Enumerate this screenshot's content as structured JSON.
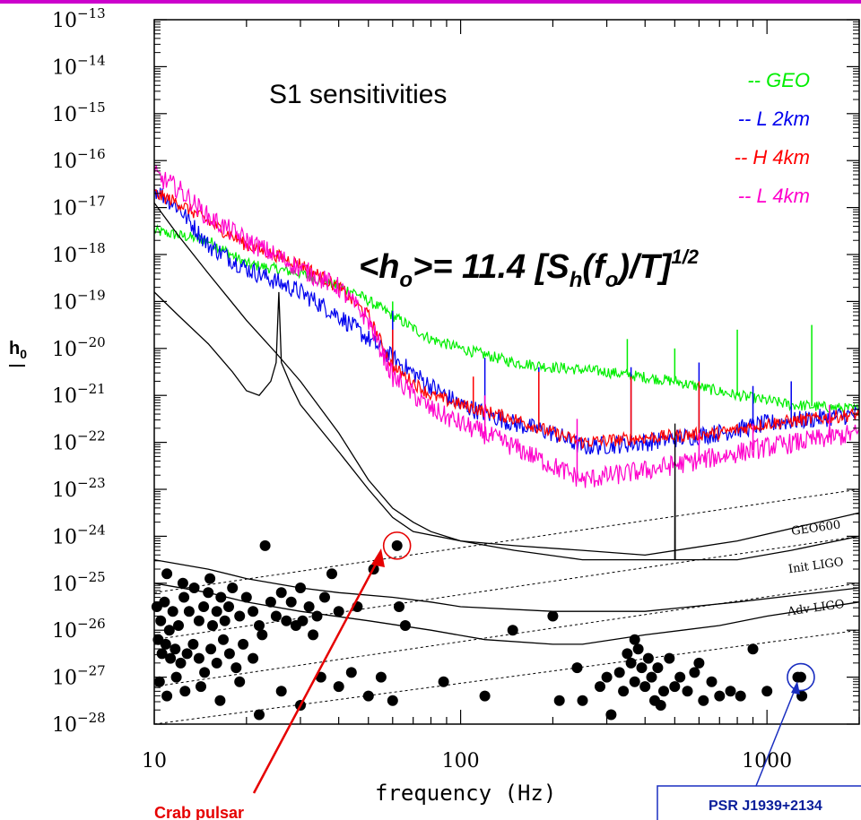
{
  "colors": {
    "top_border": "#cc00cc",
    "geo": "#00ee00",
    "l2km": "#0000ee",
    "h4km": "#ff0000",
    "l4km": "#ff00cc",
    "arrow_red": "#e60000",
    "arrow_blue": "#1a2ec0",
    "circle_red": "#e60000",
    "circle_blue": "#1a2ec0"
  },
  "chart_data": {
    "type": "scatter",
    "title": "S1 sensitivities",
    "formula": {
      "lhs": "<h",
      "lhs_sub": "o",
      "mid": ">= 11.4 [S",
      "mid_sub": "h",
      "open": "(f",
      "open_sub": "o",
      "close": ")/T]",
      "exp": "1/2"
    },
    "xlabel": "frequency (Hz)",
    "ylabel": "h",
    "ylabel_sub": "0",
    "x_scale": "log",
    "y_scale": "log",
    "xlim": [
      10,
      2000
    ],
    "ylim_exp": [
      -28,
      -13
    ],
    "x_ticks": [
      "10",
      "100",
      "1000"
    ],
    "y_tick_exps": [
      "-13",
      "-14",
      "-15",
      "-16",
      "-17",
      "-18",
      "-19",
      "-20",
      "-21",
      "-22",
      "-23",
      "-24",
      "-25",
      "-26",
      "-27",
      "-28"
    ],
    "legend": [
      {
        "label": "-- GEO",
        "color_key": "geo"
      },
      {
        "label": "-- L 2km",
        "color_key": "l2km"
      },
      {
        "label": "-- H 4km",
        "color_key": "h4km"
      },
      {
        "label": "-- L 4km",
        "color_key": "l4km"
      }
    ],
    "noise_series": [
      {
        "name": "GEO",
        "color_key": "geo",
        "anchors": [
          [
            10,
            -17.5
          ],
          [
            15,
            -17.7
          ],
          [
            20,
            -18.2
          ],
          [
            30,
            -18.4
          ],
          [
            45,
            -18.8
          ],
          [
            60,
            -19.3
          ],
          [
            80,
            -19.8
          ],
          [
            100,
            -20.0
          ],
          [
            150,
            -20.3
          ],
          [
            200,
            -20.4
          ],
          [
            300,
            -20.5
          ],
          [
            500,
            -20.7
          ],
          [
            800,
            -21.0
          ],
          [
            1200,
            -21.2
          ],
          [
            2000,
            -21.3
          ]
        ],
        "jitter": 0.12,
        "spikes": [
          [
            60,
            -19.0
          ],
          [
            350,
            -19.8
          ],
          [
            500,
            -20.0
          ],
          [
            800,
            -19.6
          ],
          [
            1400,
            -19.5
          ]
        ]
      },
      {
        "name": "L 2km",
        "color_key": "l2km",
        "anchors": [
          [
            10,
            -16.6
          ],
          [
            12,
            -17.0
          ],
          [
            15,
            -17.8
          ],
          [
            20,
            -18.3
          ],
          [
            30,
            -18.8
          ],
          [
            40,
            -19.3
          ],
          [
            60,
            -20.2
          ],
          [
            80,
            -20.8
          ],
          [
            100,
            -21.2
          ],
          [
            150,
            -21.6
          ],
          [
            200,
            -21.8
          ],
          [
            250,
            -22.1
          ],
          [
            400,
            -22.0
          ],
          [
            700,
            -21.8
          ],
          [
            1000,
            -21.6
          ],
          [
            2000,
            -21.4
          ]
        ],
        "jitter": 0.2,
        "spikes": [
          [
            60,
            -19.2
          ],
          [
            120,
            -20.2
          ],
          [
            180,
            -20.4
          ],
          [
            360,
            -20.4
          ],
          [
            600,
            -20.3
          ],
          [
            900,
            -20.8
          ],
          [
            1200,
            -20.7
          ]
        ]
      },
      {
        "name": "H 4km",
        "color_key": "h4km",
        "anchors": [
          [
            10,
            -16.7
          ],
          [
            12,
            -16.9
          ],
          [
            15,
            -17.3
          ],
          [
            20,
            -17.8
          ],
          [
            30,
            -18.2
          ],
          [
            40,
            -18.7
          ],
          [
            50,
            -19.3
          ],
          [
            60,
            -20.4
          ],
          [
            80,
            -21.0
          ],
          [
            100,
            -21.2
          ],
          [
            150,
            -21.5
          ],
          [
            200,
            -21.8
          ],
          [
            250,
            -22.0
          ],
          [
            400,
            -21.9
          ],
          [
            700,
            -21.8
          ],
          [
            1000,
            -21.6
          ],
          [
            2000,
            -21.4
          ]
        ],
        "jitter": 0.14,
        "spikes": [
          [
            60,
            -19.6
          ],
          [
            110,
            -20.6
          ],
          [
            180,
            -20.5
          ],
          [
            360,
            -20.6
          ],
          [
            600,
            -20.7
          ]
        ]
      },
      {
        "name": "L 4km",
        "color_key": "l4km",
        "anchors": [
          [
            10,
            -16.3
          ],
          [
            12,
            -16.6
          ],
          [
            15,
            -17.2
          ],
          [
            20,
            -17.7
          ],
          [
            30,
            -18.3
          ],
          [
            40,
            -18.7
          ],
          [
            50,
            -19.4
          ],
          [
            60,
            -20.6
          ],
          [
            80,
            -21.3
          ],
          [
            100,
            -21.6
          ],
          [
            150,
            -22.1
          ],
          [
            200,
            -22.5
          ],
          [
            250,
            -22.8
          ],
          [
            400,
            -22.6
          ],
          [
            700,
            -22.3
          ],
          [
            1000,
            -22.1
          ],
          [
            2000,
            -21.8
          ]
        ],
        "jitter": 0.22,
        "spikes": [
          [
            120,
            -21.0
          ],
          [
            240,
            -21.5
          ],
          [
            600,
            -21.8
          ],
          [
            900,
            -21.6
          ],
          [
            1600,
            -21.2
          ]
        ]
      }
    ],
    "reference_curves": [
      {
        "name": "upper",
        "points": [
          [
            10,
            -16.9
          ],
          [
            12,
            -17.6
          ],
          [
            15,
            -18.4
          ],
          [
            20,
            -19.4
          ],
          [
            25,
            -20.1
          ],
          [
            30,
            -20.7
          ],
          [
            40,
            -21.8
          ],
          [
            50,
            -22.8
          ],
          [
            60,
            -23.4
          ],
          [
            70,
            -23.7
          ],
          [
            80,
            -23.9
          ],
          [
            100,
            -24.1
          ],
          [
            150,
            -24.2
          ],
          [
            250,
            -24.3
          ],
          [
            400,
            -24.4
          ],
          [
            800,
            -24.1
          ],
          [
            2000,
            -23.5
          ]
        ]
      },
      {
        "name": "spiky",
        "points": [
          [
            10,
            -18.8
          ],
          [
            12,
            -19.3
          ],
          [
            15,
            -19.9
          ],
          [
            18,
            -20.5
          ],
          [
            20,
            -20.9
          ],
          [
            22,
            -21.0
          ],
          [
            24,
            -20.7
          ],
          [
            25,
            -20.3
          ],
          [
            25.5,
            -18.8
          ],
          [
            26,
            -20.3
          ],
          [
            28,
            -20.8
          ],
          [
            30,
            -21.2
          ],
          [
            40,
            -22.2
          ],
          [
            50,
            -23.0
          ],
          [
            60,
            -23.6
          ],
          [
            70,
            -23.9
          ],
          [
            100,
            -24.1
          ],
          [
            150,
            -24.3
          ],
          [
            250,
            -24.5
          ],
          [
            400,
            -24.5
          ],
          [
            500,
            -24.5
          ],
          [
            501,
            -21.6
          ],
          [
            502,
            -24.5
          ],
          [
            800,
            -24.5
          ],
          [
            1200,
            -24.3
          ],
          [
            2000,
            -24.0
          ]
        ]
      },
      {
        "name": "Init LIGO",
        "points": [
          [
            10,
            -24.5
          ],
          [
            15,
            -24.7
          ],
          [
            20,
            -24.9
          ],
          [
            30,
            -25.1
          ],
          [
            40,
            -25.2
          ],
          [
            60,
            -25.3
          ],
          [
            80,
            -25.4
          ],
          [
            100,
            -25.5
          ],
          [
            200,
            -25.6
          ],
          [
            400,
            -25.6
          ],
          [
            800,
            -25.4
          ],
          [
            2000,
            -25.1
          ]
        ]
      },
      {
        "name": "Adv LIGO",
        "points": [
          [
            10,
            -25.0
          ],
          [
            15,
            -25.2
          ],
          [
            20,
            -25.4
          ],
          [
            30,
            -25.6
          ],
          [
            50,
            -25.8
          ],
          [
            80,
            -26.0
          ],
          [
            120,
            -26.2
          ],
          [
            200,
            -26.3
          ],
          [
            250,
            -26.3
          ],
          [
            400,
            -26.1
          ],
          [
            700,
            -25.9
          ],
          [
            1000,
            -25.7
          ],
          [
            2000,
            -25.4
          ]
        ]
      }
    ],
    "dashed_lines": [
      {
        "from": [
          10,
          -25.2
        ],
        "to": [
          2000,
          -23.0
        ]
      },
      {
        "from": [
          10,
          -26.2
        ],
        "to": [
          2000,
          -24.0
        ]
      },
      {
        "from": [
          10,
          -27.2
        ],
        "to": [
          2000,
          -25.0
        ]
      },
      {
        "from": [
          10,
          -28.0
        ],
        "to": [
          2000,
          -26.0
        ]
      }
    ],
    "curve_labels": [
      {
        "text": "GEO600",
        "x": 1450,
        "y": -23.9,
        "angle": -8
      },
      {
        "text": "Init LIGO",
        "x": 1450,
        "y": -24.7,
        "angle": -8
      },
      {
        "text": "Adv LIGO",
        "x": 1450,
        "y": -25.6,
        "angle": -8
      }
    ],
    "pulsars": [
      [
        11,
        -24.8
      ],
      [
        10.2,
        -25.5
      ],
      [
        10.5,
        -25.8
      ],
      [
        10.8,
        -25.4
      ],
      [
        11.2,
        -26.0
      ],
      [
        11.5,
        -25.6
      ],
      [
        12,
        -25.9
      ],
      [
        12.5,
        -25.3
      ],
      [
        13,
        -25.6
      ],
      [
        13.5,
        -25.1
      ],
      [
        14,
        -25.8
      ],
      [
        14.5,
        -25.5
      ],
      [
        15,
        -25.2
      ],
      [
        15.5,
        -25.9
      ],
      [
        16,
        -25.6
      ],
      [
        16.5,
        -25.3
      ],
      [
        17,
        -25.8
      ],
      [
        17.5,
        -25.5
      ],
      [
        18,
        -25.1
      ],
      [
        19,
        -25.7
      ],
      [
        20,
        -25.3
      ],
      [
        21,
        -25.6
      ],
      [
        22,
        -25.9
      ],
      [
        23,
        -24.2
      ],
      [
        24,
        -25.4
      ],
      [
        25,
        -25.7
      ],
      [
        26,
        -25.2
      ],
      [
        27,
        -25.8
      ],
      [
        28,
        -25.4
      ],
      [
        29,
        -25.9
      ],
      [
        30,
        -25.1
      ],
      [
        32,
        -25.5
      ],
      [
        34,
        -25.7
      ],
      [
        36,
        -25.3
      ],
      [
        38,
        -24.8
      ],
      [
        40,
        -25.6
      ],
      [
        10.3,
        -26.2
      ],
      [
        10.6,
        -26.5
      ],
      [
        10.9,
        -26.3
      ],
      [
        11.3,
        -26.6
      ],
      [
        11.7,
        -26.4
      ],
      [
        12.2,
        -26.7
      ],
      [
        12.8,
        -26.5
      ],
      [
        13.4,
        -26.3
      ],
      [
        14,
        -26.6
      ],
      [
        14.6,
        -26.9
      ],
      [
        15.3,
        -26.4
      ],
      [
        16,
        -26.7
      ],
      [
        16.8,
        -26.2
      ],
      [
        17.6,
        -26.5
      ],
      [
        18.5,
        -26.8
      ],
      [
        19.5,
        -26.3
      ],
      [
        21,
        -26.6
      ],
      [
        22.5,
        -26.1
      ],
      [
        10.4,
        -27.1
      ],
      [
        11,
        -27.4
      ],
      [
        11.8,
        -27.0
      ],
      [
        12.6,
        -27.3
      ],
      [
        14.2,
        -27.2
      ],
      [
        16.4,
        -27.5
      ],
      [
        19,
        -27.1
      ],
      [
        22,
        -27.8
      ],
      [
        26,
        -27.3
      ],
      [
        30,
        -27.6
      ],
      [
        35,
        -27.0
      ],
      [
        40,
        -27.2
      ],
      [
        44,
        -26.9
      ],
      [
        50,
        -27.4
      ],
      [
        55,
        -27.0
      ],
      [
        60,
        -27.5
      ],
      [
        62,
        -24.2
      ],
      [
        63,
        -25.5
      ],
      [
        66,
        -25.9
      ],
      [
        88,
        -27.1
      ],
      [
        52,
        -24.7
      ],
      [
        46,
        -25.5
      ],
      [
        120,
        -27.4
      ],
      [
        148,
        -26.0
      ],
      [
        200,
        -25.7
      ],
      [
        210,
        -27.5
      ],
      [
        250,
        -27.5
      ],
      [
        285,
        -27.2
      ],
      [
        300,
        -27.0
      ],
      [
        310,
        -27.8
      ],
      [
        330,
        -26.9
      ],
      [
        340,
        -27.3
      ],
      [
        350,
        -26.5
      ],
      [
        360,
        -26.7
      ],
      [
        370,
        -27.1
      ],
      [
        380,
        -26.4
      ],
      [
        390,
        -26.8
      ],
      [
        400,
        -27.2
      ],
      [
        410,
        -26.6
      ],
      [
        420,
        -27.0
      ],
      [
        430,
        -27.5
      ],
      [
        440,
        -26.8
      ],
      [
        460,
        -27.3
      ],
      [
        480,
        -26.6
      ],
      [
        500,
        -27.2
      ],
      [
        520,
        -27.0
      ],
      [
        550,
        -27.3
      ],
      [
        580,
        -26.9
      ],
      [
        620,
        -27.5
      ],
      [
        660,
        -27.1
      ],
      [
        700,
        -27.4
      ],
      [
        760,
        -27.3
      ],
      [
        820,
        -27.4
      ],
      [
        900,
        -26.4
      ],
      [
        1000,
        -27.3
      ],
      [
        1260,
        -27.0
      ],
      [
        1290,
        -27.0
      ],
      [
        1300,
        -27.4
      ],
      [
        370,
        -26.2
      ],
      [
        240,
        -26.8
      ],
      [
        600,
        -26.7
      ],
      [
        450,
        -27.6
      ],
      [
        30.5,
        -25.8
      ],
      [
        33,
        -26.1
      ],
      [
        12.4,
        -25.0
      ],
      [
        15.2,
        -24.9
      ]
    ],
    "highlight": [
      {
        "x": 62,
        "y": -24.2,
        "color_key": "circle_red"
      },
      {
        "x": 1290,
        "y": -27.0,
        "color_key": "circle_blue"
      }
    ],
    "annotations": {
      "red_text": "Crab pulsar",
      "blue_text": "PSR J1939+2134"
    }
  }
}
